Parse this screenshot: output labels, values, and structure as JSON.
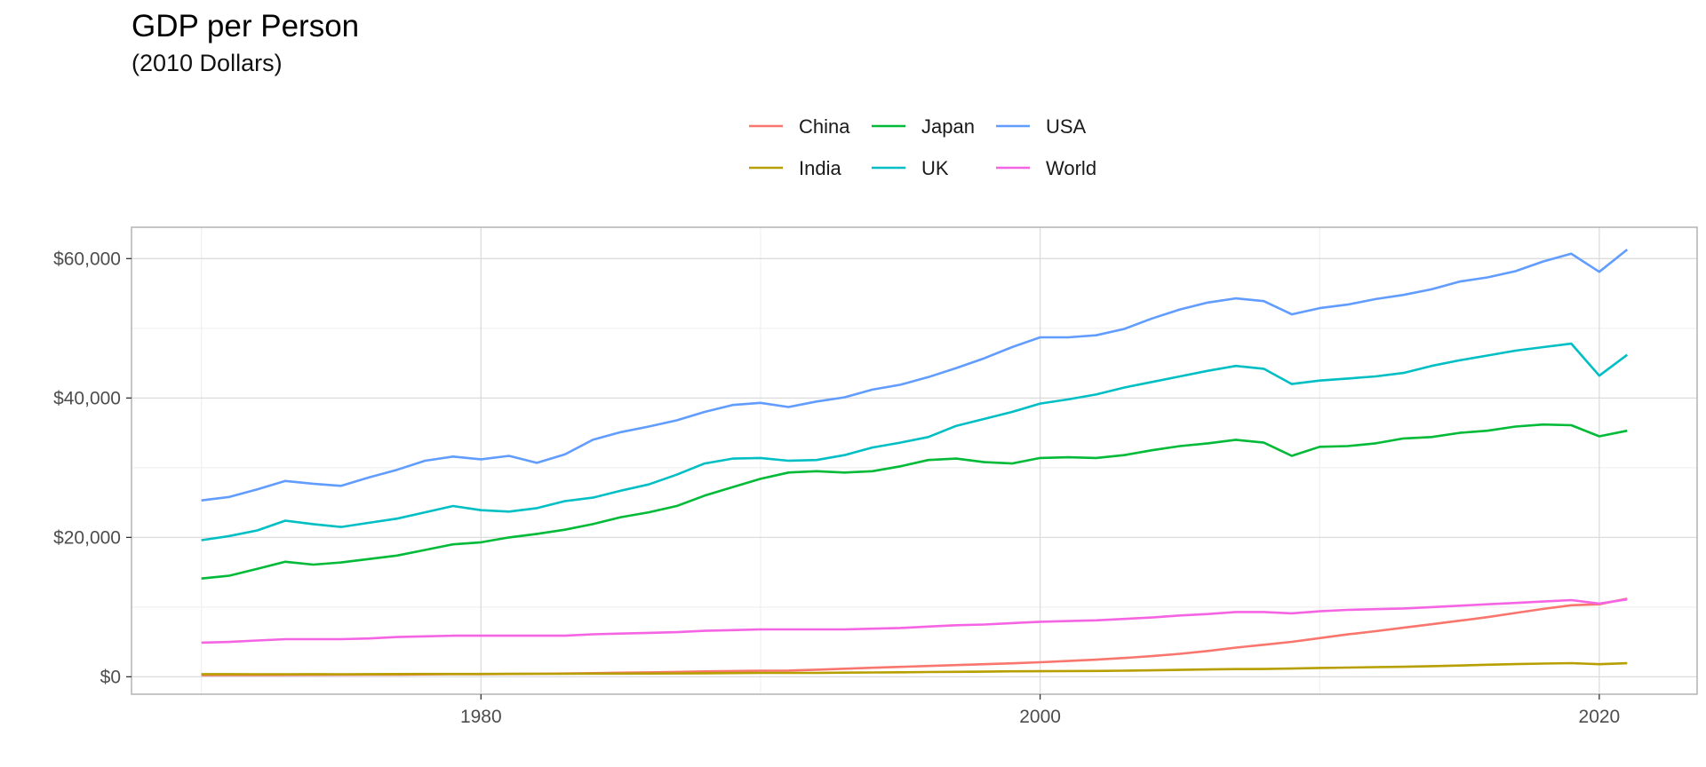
{
  "chart_data": {
    "type": "line",
    "title": "GDP per Person",
    "subtitle": "(2010 Dollars)",
    "xlabel": "",
    "ylabel": "",
    "xlim": [
      1967.5,
      2023.5
    ],
    "ylim": [
      -2500,
      64500
    ],
    "x_ticks": [
      1980,
      2000,
      2020
    ],
    "y_ticks": [
      {
        "value": 0,
        "label": "$0"
      },
      {
        "value": 20000,
        "label": "$20,000"
      },
      {
        "value": 40000,
        "label": "$40,000"
      },
      {
        "value": 60000,
        "label": "$60,000"
      }
    ],
    "legend_position": "top",
    "grid": true,
    "x": [
      1970,
      1971,
      1972,
      1973,
      1974,
      1975,
      1976,
      1977,
      1978,
      1979,
      1980,
      1981,
      1982,
      1983,
      1984,
      1985,
      1986,
      1987,
      1988,
      1989,
      1990,
      1991,
      1992,
      1993,
      1994,
      1995,
      1996,
      1997,
      1998,
      1999,
      2000,
      2001,
      2002,
      2003,
      2004,
      2005,
      2006,
      2007,
      2008,
      2009,
      2010,
      2011,
      2012,
      2013,
      2014,
      2015,
      2016,
      2017,
      2018,
      2019,
      2020,
      2021
    ],
    "series": [
      {
        "name": "China",
        "color": "#F8766D",
        "values": [
          230,
          240,
          250,
          270,
          280,
          290,
          300,
          320,
          340,
          360,
          380,
          400,
          430,
          470,
          520,
          580,
          630,
          700,
          770,
          830,
          860,
          890,
          1010,
          1150,
          1290,
          1420,
          1550,
          1680,
          1800,
          1930,
          2090,
          2260,
          2460,
          2700,
          2960,
          3290,
          3700,
          4190,
          4590,
          5020,
          5550,
          6080,
          6550,
          7040,
          7540,
          8050,
          8560,
          9150,
          9740,
          10260,
          10400,
          11200
        ]
      },
      {
        "name": "India",
        "color": "#B79F00",
        "values": [
          380,
          380,
          370,
          370,
          380,
          370,
          380,
          390,
          400,
          400,
          400,
          420,
          430,
          440,
          450,
          460,
          470,
          480,
          510,
          530,
          560,
          560,
          560,
          590,
          620,
          650,
          690,
          710,
          740,
          780,
          800,
          820,
          840,
          880,
          930,
          990,
          1050,
          1110,
          1120,
          1180,
          1270,
          1320,
          1380,
          1440,
          1520,
          1620,
          1730,
          1820,
          1900,
          1960,
          1800,
          1950
        ]
      },
      {
        "name": "Japan",
        "color": "#00BA38",
        "values": [
          14100,
          14500,
          15500,
          16500,
          16100,
          16400,
          16900,
          17400,
          18200,
          19000,
          19300,
          20000,
          20500,
          21100,
          21900,
          22900,
          23600,
          24500,
          26000,
          27200,
          28400,
          29300,
          29500,
          29300,
          29500,
          30200,
          31100,
          31300,
          30800,
          30600,
          31400,
          31500,
          31400,
          31800,
          32500,
          33100,
          33500,
          34000,
          33600,
          31700,
          33000,
          33100,
          33500,
          34200,
          34400,
          35000,
          35300,
          35900,
          36200,
          36100,
          34500,
          35300
        ]
      },
      {
        "name": "UK",
        "color": "#00BFC4",
        "values": [
          19600,
          20200,
          21000,
          22400,
          21900,
          21500,
          22100,
          22700,
          23600,
          24500,
          23900,
          23700,
          24200,
          25200,
          25700,
          26700,
          27600,
          29000,
          30600,
          31300,
          31400,
          31000,
          31100,
          31800,
          32900,
          33600,
          34400,
          36000,
          37000,
          38000,
          39200,
          39800,
          40500,
          41500,
          42300,
          43100,
          43900,
          44600,
          44200,
          42000,
          42500,
          42800,
          43100,
          43600,
          44600,
          45400,
          46100,
          46800,
          47300,
          47800,
          43200,
          46200
        ]
      },
      {
        "name": "USA",
        "color": "#619CFF",
        "values": [
          25300,
          25800,
          26900,
          28100,
          27700,
          27400,
          28600,
          29700,
          31000,
          31600,
          31200,
          31700,
          30700,
          31900,
          34000,
          35100,
          35900,
          36800,
          38000,
          39000,
          39300,
          38700,
          39500,
          40100,
          41200,
          41900,
          43000,
          44300,
          45700,
          47300,
          48700,
          48700,
          49000,
          49900,
          51400,
          52700,
          53700,
          54300,
          53900,
          52000,
          52900,
          53400,
          54200,
          54800,
          55600,
          56700,
          57300,
          58200,
          59600,
          60700,
          58100,
          61300
        ]
      },
      {
        "name": "World",
        "color": "#F564E3",
        "values": [
          4900,
          5000,
          5200,
          5400,
          5400,
          5400,
          5500,
          5700,
          5800,
          5900,
          5900,
          5900,
          5900,
          5900,
          6100,
          6200,
          6300,
          6400,
          6600,
          6700,
          6800,
          6800,
          6800,
          6800,
          6900,
          7000,
          7200,
          7400,
          7500,
          7700,
          7900,
          8000,
          8100,
          8300,
          8500,
          8800,
          9000,
          9300,
          9300,
          9100,
          9400,
          9600,
          9700,
          9800,
          10000,
          10200,
          10400,
          10600,
          10800,
          11000,
          10500,
          11100
        ]
      }
    ]
  }
}
